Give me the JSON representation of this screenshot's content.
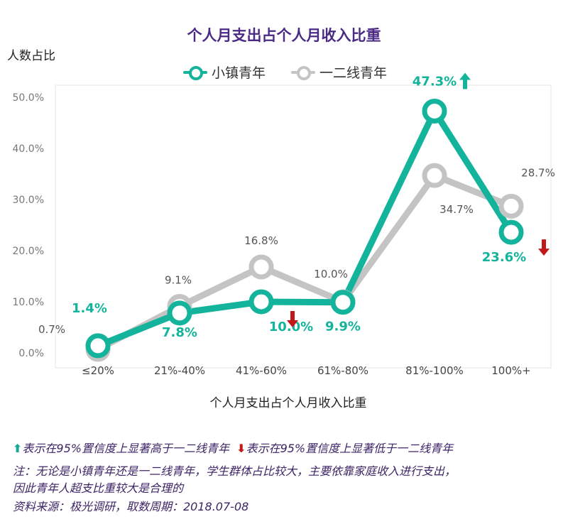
{
  "chart_data": {
    "type": "line",
    "title": "个人月支出占个人月收入比重",
    "ylabel": "人数占比",
    "xlabel": "个人月支出占个人月收入比重",
    "categories": [
      "≤20%",
      "21%-40%",
      "41%-60%",
      "61%-80%",
      "81%-100%",
      "100%+"
    ],
    "ylim": [
      0,
      50
    ],
    "yticks": [
      "0.0%",
      "10.0%",
      "20.0%",
      "30.0%",
      "40.0%",
      "50.0%"
    ],
    "grid": false,
    "legend_position": "top-center",
    "series": [
      {
        "name": "小镇青年",
        "color": "#13b39c",
        "values": [
          1.4,
          7.8,
          10.0,
          9.9,
          47.3,
          23.6
        ],
        "labels": [
          "1.4%",
          "7.8%",
          "10.0%",
          "9.9%",
          "47.3%",
          "23.6%"
        ],
        "markers": [
          "",
          "",
          "down",
          "",
          "up",
          "down"
        ]
      },
      {
        "name": "一二线青年",
        "color": "#c4c4c4",
        "values": [
          0.7,
          9.1,
          16.8,
          10.0,
          34.7,
          28.7
        ],
        "labels": [
          "0.7%",
          "9.1%",
          "16.8%",
          "10.0%",
          "34.7%",
          "28.7%"
        ]
      }
    ]
  },
  "footer": {
    "up_note": "表示在95%置信度上显著高于一二线青年",
    "down_note": "表示在95%置信度上显著低于一二线青年",
    "note_line1": "注：无论是小镇青年还是一二线青年，学生群体占比较大，主要依靠家庭收入进行支出，",
    "note_line2": "因此青年人超支比重较大是合理的",
    "source": "资料来源：极光调研，取数周期：2018.07-08"
  }
}
